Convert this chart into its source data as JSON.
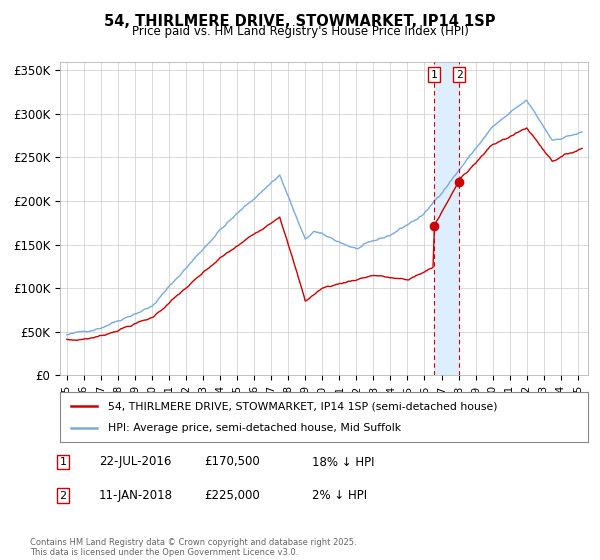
{
  "title": "54, THIRLMERE DRIVE, STOWMARKET, IP14 1SP",
  "subtitle": "Price paid vs. HM Land Registry's House Price Index (HPI)",
  "ylabel_ticks": [
    "£0",
    "£50K",
    "£100K",
    "£150K",
    "£200K",
    "£250K",
    "£300K",
    "£350K"
  ],
  "ytick_vals": [
    0,
    50000,
    100000,
    150000,
    200000,
    250000,
    300000,
    350000
  ],
  "ylim": [
    0,
    360000
  ],
  "legend_line1": "54, THIRLMERE DRIVE, STOWMARKET, IP14 1SP (semi-detached house)",
  "legend_line2": "HPI: Average price, semi-detached house, Mid Suffolk",
  "transaction1_date": "22-JUL-2016",
  "transaction1_price": 170500,
  "transaction1_label": "£170,500",
  "transaction1_hpi": "18% ↓ HPI",
  "transaction2_date": "11-JAN-2018",
  "transaction2_price": 225000,
  "transaction2_label": "£225,000",
  "transaction2_hpi": "2% ↓ HPI",
  "footer": "Contains HM Land Registry data © Crown copyright and database right 2025.\nThis data is licensed under the Open Government Licence v3.0.",
  "line_color_red": "#cc0000",
  "line_color_blue": "#7aaadd",
  "vline_color": "#cc0000",
  "vband_color": "#ddeeff",
  "background_color": "#ffffff",
  "grid_color": "#cccccc"
}
